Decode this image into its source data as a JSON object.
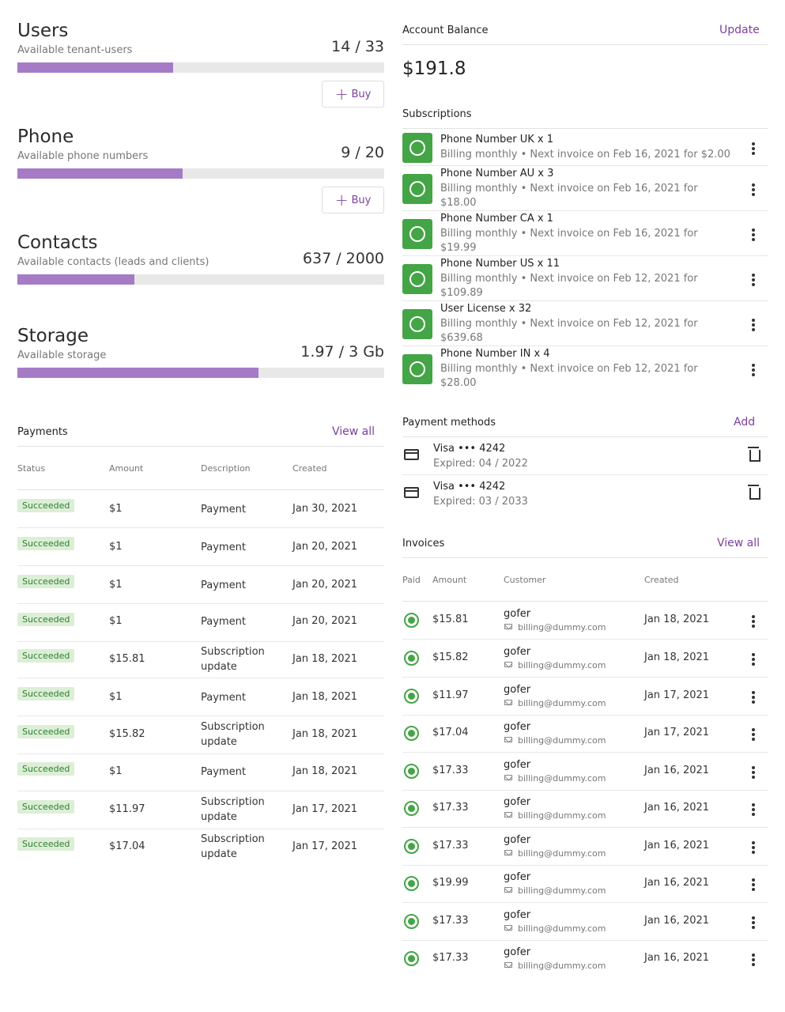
{
  "quotas": [
    {
      "title": "Users",
      "subtitle": "Available tenant-users",
      "count": "14 / 33",
      "used": 14,
      "total": 33,
      "buy_label": "Buy"
    },
    {
      "title": "Phone",
      "subtitle": "Available phone numbers",
      "count": "9 / 20",
      "used": 9,
      "total": 20,
      "buy_label": "Buy"
    },
    {
      "title": "Contacts",
      "subtitle": "Available contacts (leads and clients)",
      "count": "637 / 2000",
      "used": 637,
      "total": 2000
    },
    {
      "title": "Storage",
      "subtitle": "Available storage",
      "count": "1.97 / 3 Gb",
      "used": 1.97,
      "total": 3
    }
  ],
  "payments": {
    "title": "Payments",
    "view_all": "View all",
    "columns": [
      "Status",
      "Amount",
      "Description",
      "Created"
    ],
    "rows": [
      {
        "status": "Succeeded",
        "amount": "$1",
        "description": "Payment",
        "created": "Jan 30, 2021"
      },
      {
        "status": "Succeeded",
        "amount": "$1",
        "description": "Payment",
        "created": "Jan 20, 2021"
      },
      {
        "status": "Succeeded",
        "amount": "$1",
        "description": "Payment",
        "created": "Jan 20, 2021"
      },
      {
        "status": "Succeeded",
        "amount": "$1",
        "description": "Payment",
        "created": "Jan 20, 2021"
      },
      {
        "status": "Succeeded",
        "amount": "$15.81",
        "description": "Subscription update",
        "created": "Jan 18, 2021"
      },
      {
        "status": "Succeeded",
        "amount": "$1",
        "description": "Payment",
        "created": "Jan 18, 2021"
      },
      {
        "status": "Succeeded",
        "amount": "$15.82",
        "description": "Subscription update",
        "created": "Jan 18, 2021"
      },
      {
        "status": "Succeeded",
        "amount": "$1",
        "description": "Payment",
        "created": "Jan 18, 2021"
      },
      {
        "status": "Succeeded",
        "amount": "$11.97",
        "description": "Subscription update",
        "created": "Jan 17, 2021"
      },
      {
        "status": "Succeeded",
        "amount": "$17.04",
        "description": "Subscription update",
        "created": "Jan 17, 2021"
      }
    ]
  },
  "account": {
    "title": "Account Balance",
    "update_label": "Update",
    "balance": "$191.8"
  },
  "subscriptions": {
    "title": "Subscriptions",
    "items": [
      {
        "name": "Phone Number UK x 1",
        "detail": "Billing monthly • Next invoice on Feb 16, 2021 for $2.00"
      },
      {
        "name": "Phone Number AU x 3",
        "detail": "Billing monthly • Next invoice on Feb 16, 2021 for $18.00"
      },
      {
        "name": "Phone Number CA x 1",
        "detail": "Billing monthly • Next invoice on Feb 16, 2021 for $19.99"
      },
      {
        "name": "Phone Number US x 11",
        "detail": "Billing monthly • Next invoice on Feb 12, 2021 for $109.89"
      },
      {
        "name": "User License x 32",
        "detail": "Billing monthly • Next invoice on Feb 12, 2021 for $639.68"
      },
      {
        "name": "Phone Number IN x 4",
        "detail": "Billing monthly • Next invoice on Feb 12, 2021 for $28.00"
      }
    ]
  },
  "payment_methods": {
    "title": "Payment methods",
    "add_label": "Add",
    "items": [
      {
        "name": "Visa ••• 4242",
        "expiry": "Expired: 04 / 2022"
      },
      {
        "name": "Visa ••• 4242",
        "expiry": "Expired: 03 / 2033"
      }
    ]
  },
  "invoices": {
    "title": "Invoices",
    "view_all": "View all",
    "columns": [
      "Paid",
      "Amount",
      "Customer",
      "Created"
    ],
    "rows": [
      {
        "amount": "$15.81",
        "customer": "gofer",
        "email": "billing@dummy.com",
        "created": "Jan 18, 2021"
      },
      {
        "amount": "$15.82",
        "customer": "gofer",
        "email": "billing@dummy.com",
        "created": "Jan 18, 2021"
      },
      {
        "amount": "$11.97",
        "customer": "gofer",
        "email": "billing@dummy.com",
        "created": "Jan 17, 2021"
      },
      {
        "amount": "$17.04",
        "customer": "gofer",
        "email": "billing@dummy.com",
        "created": "Jan 17, 2021"
      },
      {
        "amount": "$17.33",
        "customer": "gofer",
        "email": "billing@dummy.com",
        "created": "Jan 16, 2021"
      },
      {
        "amount": "$17.33",
        "customer": "gofer",
        "email": "billing@dummy.com",
        "created": "Jan 16, 2021"
      },
      {
        "amount": "$17.33",
        "customer": "gofer",
        "email": "billing@dummy.com",
        "created": "Jan 16, 2021"
      },
      {
        "amount": "$19.99",
        "customer": "gofer",
        "email": "billing@dummy.com",
        "created": "Jan 16, 2021"
      },
      {
        "amount": "$17.33",
        "customer": "gofer",
        "email": "billing@dummy.com",
        "created": "Jan 16, 2021"
      },
      {
        "amount": "$17.33",
        "customer": "gofer",
        "email": "billing@dummy.com",
        "created": "Jan 16, 2021"
      }
    ]
  },
  "colors": {
    "accent": "#7b3f9e",
    "bar_fill": "#a67bc6",
    "success": "#43a545",
    "badge_bg": "#dcefd6"
  }
}
